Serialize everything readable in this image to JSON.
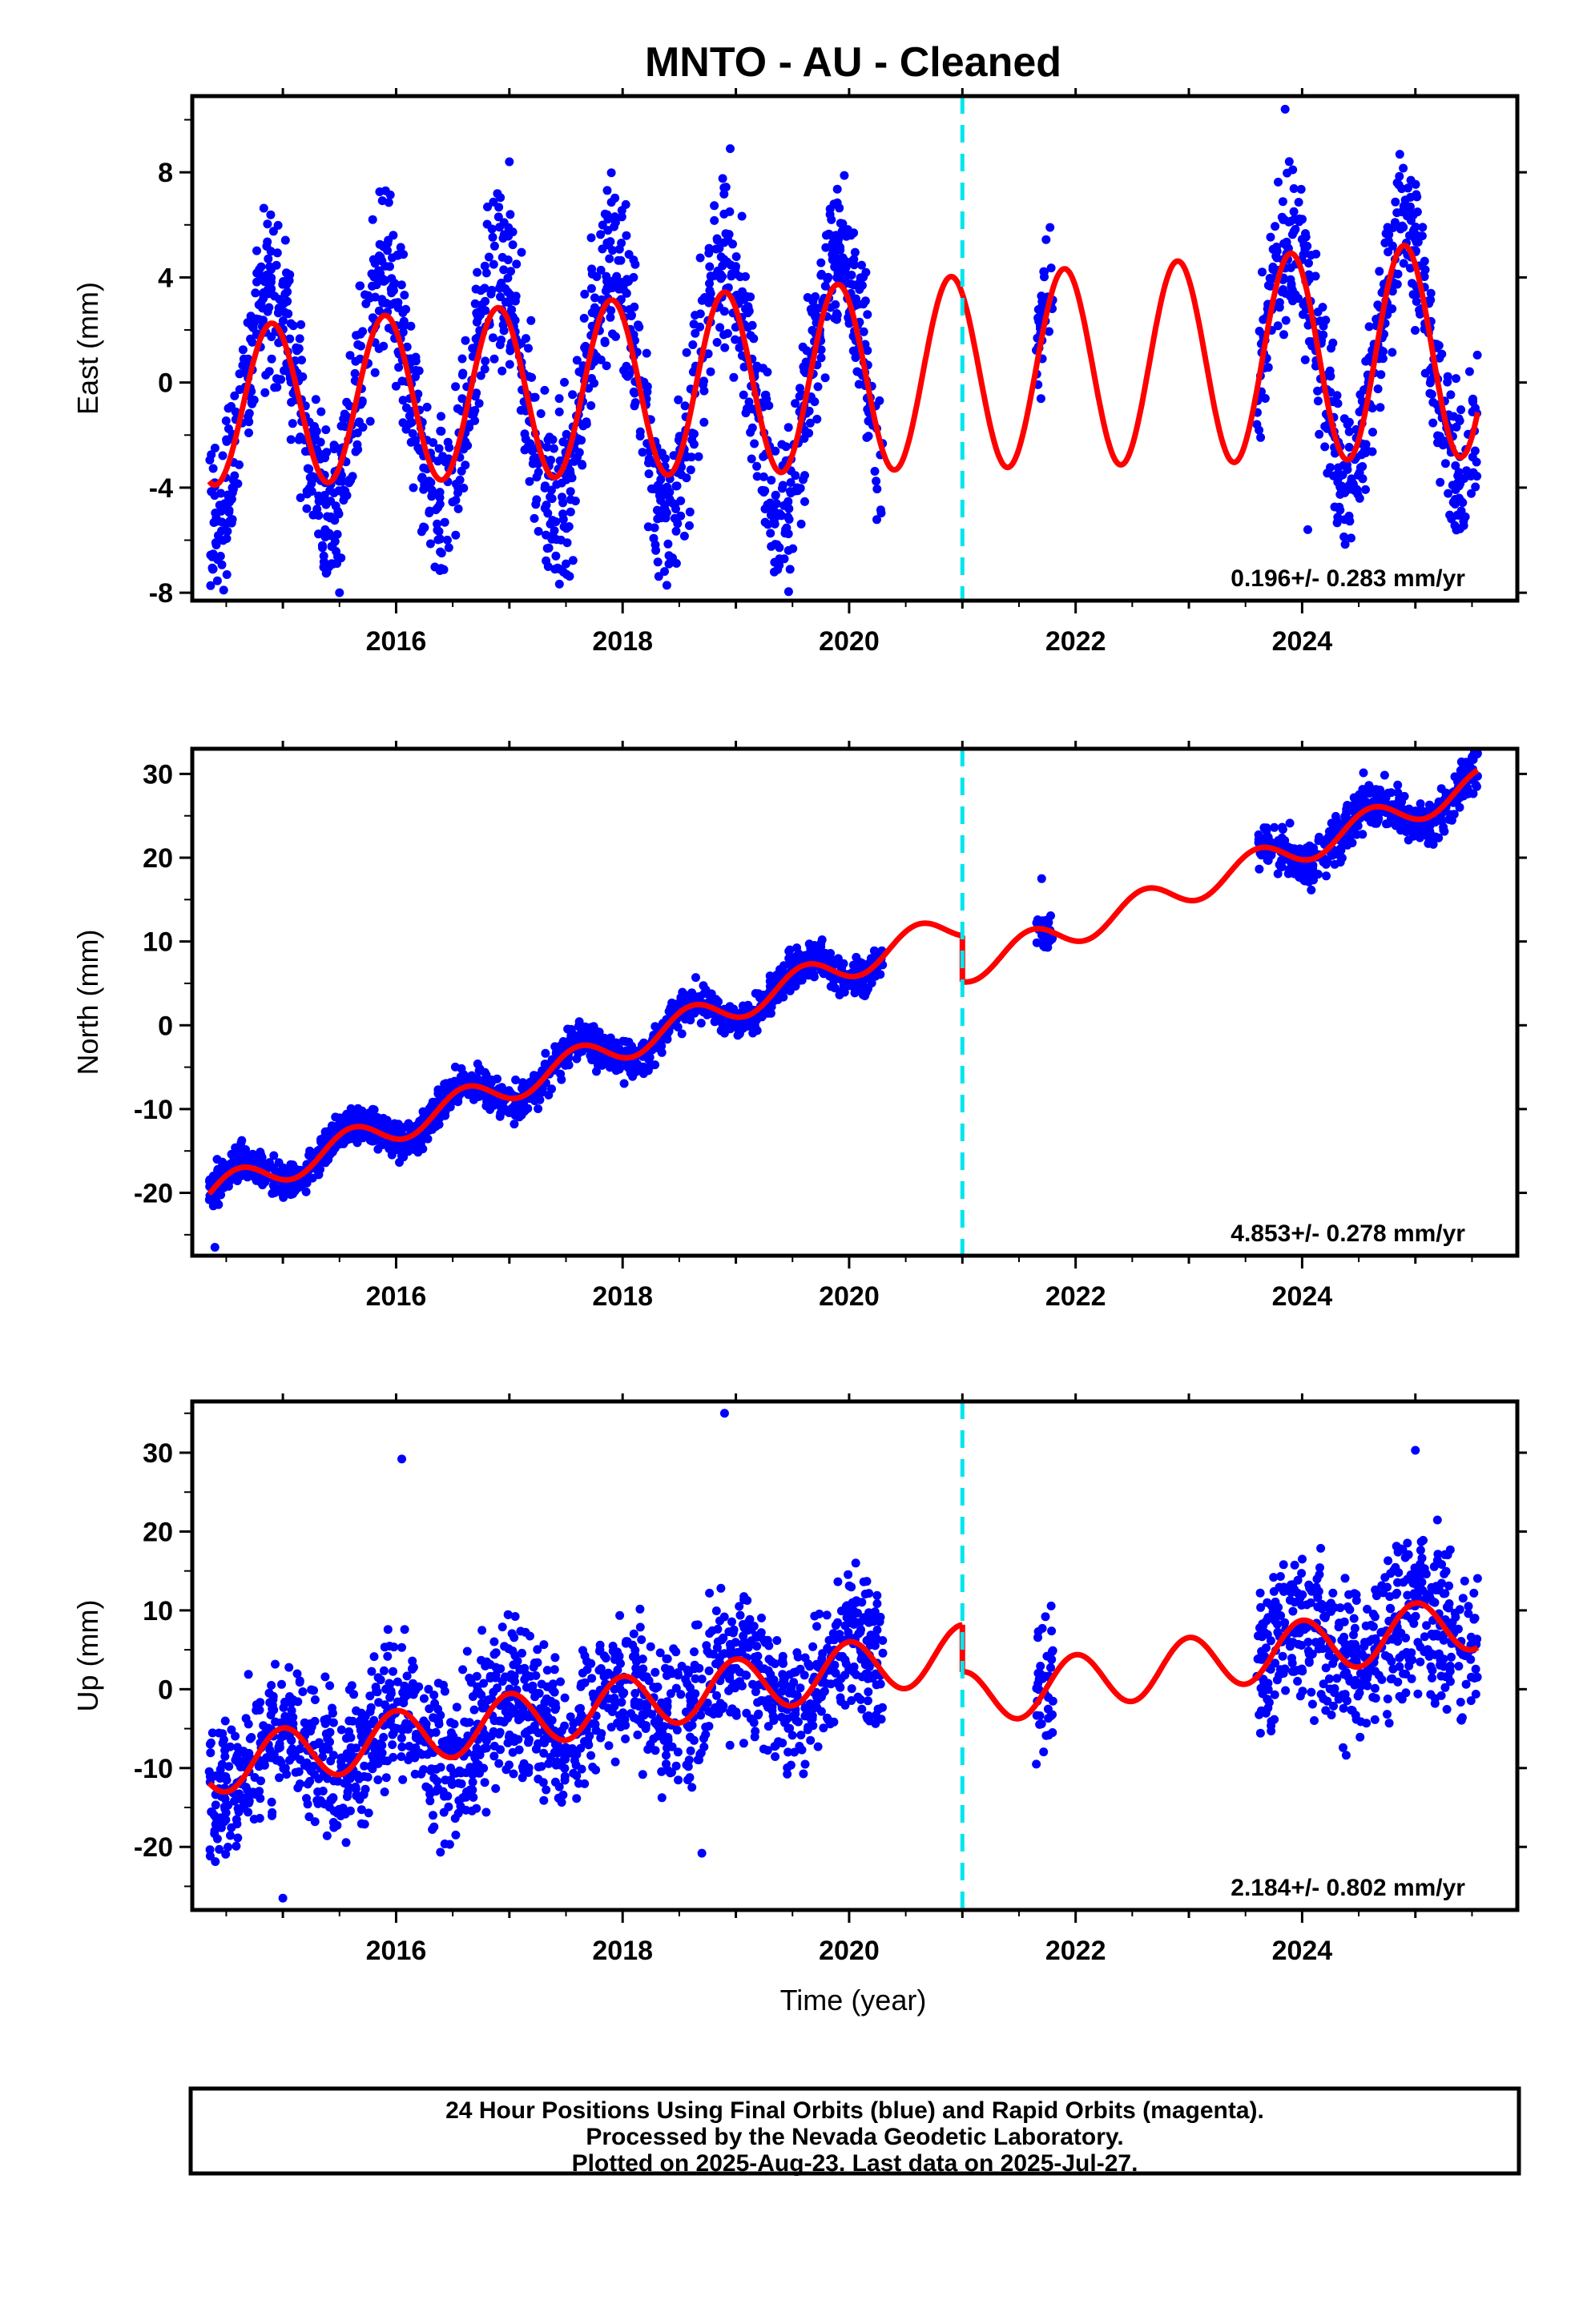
{
  "title": "MNTO  - AU - Cleaned",
  "xlabel": "Time (year)",
  "footer": {
    "line1": "24 Hour Positions Using Final Orbits (blue) and Rapid Orbits (magenta).",
    "line2": "Processed by the Nevada Geodetic Laboratory.",
    "line3": "Plotted on 2025-Aug-23. Last data on 2025-Jul-27."
  },
  "colors": {
    "data": "#0000ff",
    "model": "#ff0000",
    "break": "#00e5ee",
    "frame": "#000000"
  },
  "chart_data": [
    {
      "type": "scatter",
      "panel": "east",
      "ylabel": "East (mm)",
      "xlim": [
        2014.2,
        2025.9
      ],
      "ylim": [
        -8.3,
        10.9
      ],
      "x_ticks": [
        2016,
        2018,
        2020,
        2022,
        2024
      ],
      "y_ticks": [
        -8,
        -4,
        0,
        4,
        8
      ],
      "rate": "0.196+/- 0.283 mm/yr",
      "break_x": 2021.0,
      "model": {
        "trend_at_2020": 0.2,
        "rate": 0.196,
        "annual_amp": 3.0,
        "annual_phase_peak": 2014.9,
        "amp_growth_per_yr": 0.1,
        "offset_at_break": 0.0,
        "x_start": 2014.35,
        "x_end": 2025.55
      },
      "data_segments": [
        {
          "x0": 2014.35,
          "x1": 2020.3,
          "scatter": 1.6,
          "extra_amp": 1.2
        },
        {
          "x0": 2021.65,
          "x1": 2021.8,
          "scatter": 1.2,
          "extra_amp": 1.5
        },
        {
          "x0": 2023.6,
          "x1": 2025.55,
          "scatter": 1.4,
          "extra_amp": 0.6
        }
      ],
      "data_extremes": [
        [
          2023.85,
          10.4
        ],
        [
          2018.95,
          8.9
        ],
        [
          2017.0,
          8.4
        ],
        [
          2015.5,
          -8.0
        ],
        [
          2024.05,
          -5.6
        ]
      ]
    },
    {
      "type": "scatter",
      "panel": "north",
      "ylabel": "North (mm)",
      "xlim": [
        2014.2,
        2025.9
      ],
      "ylim": [
        -27.5,
        33.0
      ],
      "x_ticks": [
        2016,
        2018,
        2020,
        2022,
        2024
      ],
      "y_ticks": [
        -20,
        -10,
        0,
        10,
        20,
        30
      ],
      "rate": "4.853+/- 0.278 mm/yr",
      "break_x": 2021.0,
      "model": {
        "trend_at_2020": 7.3,
        "rate": 4.853,
        "annual_amp": 1.8,
        "annual_phase_peak": 2020.6,
        "amp_growth_per_yr": 0.0,
        "offset_at_break": -5.5,
        "x_start": 2014.35,
        "x_end": 2025.55
      },
      "data_segments": [
        {
          "x0": 2014.35,
          "x1": 2020.3,
          "scatter": 1.1,
          "extra_amp": 0.4
        },
        {
          "x0": 2021.65,
          "x1": 2021.8,
          "scatter": 1.2,
          "extra_amp": 0.0
        },
        {
          "x0": 2023.6,
          "x1": 2025.55,
          "scatter": 1.4,
          "extra_amp": 0.6
        }
      ],
      "data_extremes": [
        [
          2014.4,
          -26.5
        ],
        [
          2025.5,
          32.0
        ],
        [
          2021.7,
          17.5
        ]
      ]
    },
    {
      "type": "scatter",
      "panel": "up",
      "ylabel": "Up (mm)",
      "xlim": [
        2014.2,
        2025.9
      ],
      "ylim": [
        -28.0,
        36.5
      ],
      "x_ticks": [
        2016,
        2018,
        2020,
        2022,
        2024
      ],
      "y_ticks": [
        -20,
        -10,
        0,
        10,
        20,
        30
      ],
      "rate": "2.184+/- 0.802 mm/yr",
      "break_x": 2021.0,
      "model": {
        "trend_at_2020": 2.5,
        "rate": 2.184,
        "annual_amp": 3.5,
        "annual_phase_peak": 2021.0,
        "amp_growth_per_yr": 0.0,
        "offset_at_break": -6.0,
        "x_start": 2014.35,
        "x_end": 2025.55
      },
      "data_segments": [
        {
          "x0": 2014.35,
          "x1": 2020.3,
          "scatter": 4.5,
          "extra_amp": 0.0
        },
        {
          "x0": 2021.65,
          "x1": 2021.8,
          "scatter": 5.0,
          "extra_amp": 0.0
        },
        {
          "x0": 2023.6,
          "x1": 2025.55,
          "scatter": 5.0,
          "extra_amp": 0.0
        }
      ],
      "data_extremes": [
        [
          2018.9,
          35.0
        ],
        [
          2016.05,
          29.2
        ],
        [
          2025.0,
          30.3
        ],
        [
          2015.0,
          -26.5
        ],
        [
          2018.7,
          -20.8
        ]
      ]
    }
  ]
}
